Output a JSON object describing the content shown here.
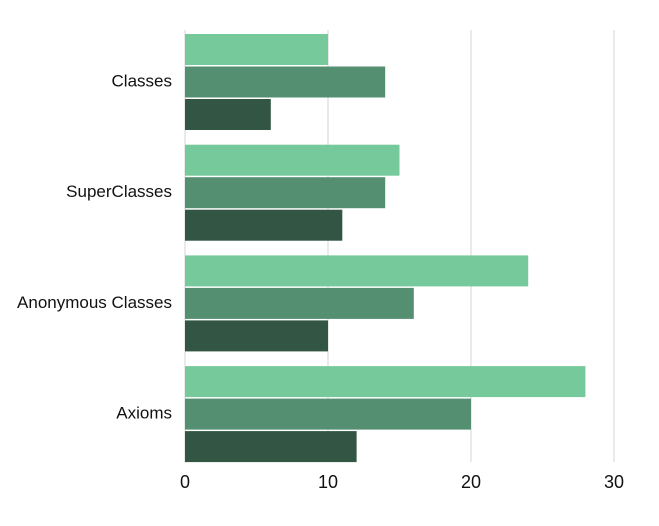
{
  "chart_data": {
    "type": "bar",
    "orientation": "horizontal",
    "categories": [
      "Classes",
      "SuperClasses",
      "Anonymous Classes",
      "Axioms"
    ],
    "series": [
      {
        "color": "#76c99b",
        "values": [
          10,
          15,
          24,
          28
        ]
      },
      {
        "color": "#558f72",
        "values": [
          14,
          14,
          16,
          20
        ]
      },
      {
        "color": "#325544",
        "values": [
          6,
          11,
          10,
          12
        ]
      }
    ],
    "xlim": [
      0,
      30
    ],
    "x_ticks": [
      0,
      10,
      20,
      30
    ],
    "grid": "vertical",
    "title": "",
    "xlabel": "",
    "ylabel": "",
    "legend": "none"
  }
}
